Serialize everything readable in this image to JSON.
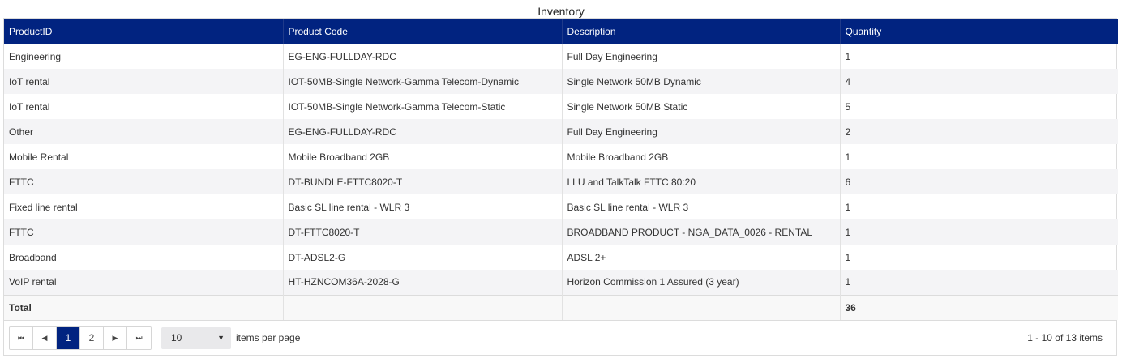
{
  "title": "Inventory",
  "columns": [
    "ProductID",
    "Product Code",
    "Description",
    "Quantity"
  ],
  "rows": [
    [
      "Engineering",
      "EG-ENG-FULLDAY-RDC",
      "Full Day Engineering",
      "1"
    ],
    [
      "IoT rental",
      "IOT-50MB-Single Network-Gamma Telecom-Dynamic",
      "Single Network 50MB Dynamic",
      "4"
    ],
    [
      "IoT rental",
      "IOT-50MB-Single Network-Gamma Telecom-Static",
      "Single Network 50MB Static",
      "5"
    ],
    [
      "Other",
      "EG-ENG-FULLDAY-RDC",
      "Full Day Engineering",
      "2"
    ],
    [
      "Mobile Rental",
      "Mobile Broadband 2GB",
      "Mobile Broadband 2GB",
      "1"
    ],
    [
      "FTTC",
      "DT-BUNDLE-FTTC8020-T",
      "LLU and TalkTalk FTTC 80:20",
      "6"
    ],
    [
      "Fixed line rental",
      "Basic SL line rental - WLR 3",
      "Basic SL line rental - WLR 3",
      "1"
    ],
    [
      "FTTC",
      "DT-FTTC8020-T",
      "BROADBAND PRODUCT - NGA_DATA_0026 - RENTAL",
      "1"
    ],
    [
      "Broadband",
      "DT-ADSL2-G",
      "ADSL 2+",
      "1"
    ],
    [
      "VoIP rental",
      "HT-HZNCOM36A-2028-G",
      "Horizon Commission 1 Assured (3 year)",
      "1"
    ]
  ],
  "footer": {
    "label": "Total",
    "total": "36"
  },
  "pager": {
    "pages": [
      "1",
      "2"
    ],
    "current_page": "1",
    "page_size": "10",
    "items_per_page_label": "items per page",
    "info": "1 - 10 of 13 items",
    "icons": [
      "first-page-icon",
      "previous-page-icon",
      "next-page-icon",
      "last-page-icon",
      "dropdown-caret-icon"
    ]
  },
  "colors": {
    "header": "#012380",
    "active_page": "#012380",
    "alt_row": "#f4f4f6"
  }
}
